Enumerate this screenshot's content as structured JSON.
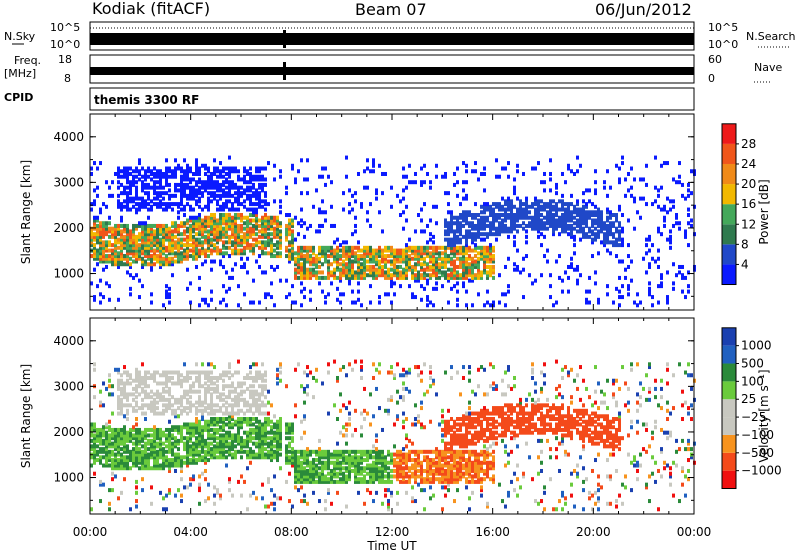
{
  "header": {
    "station": "Kodiak (fitACF)",
    "beam": "Beam 07",
    "date": "06/Jun/2012"
  },
  "params": {
    "nsky_label": "N.Sky",
    "nsky_ticks": [
      "10^5",
      "10^0"
    ],
    "nsearch_label": "N.Search",
    "nsearch_ticks": [
      "10^5",
      "10^0"
    ],
    "freq_label": "Freq.",
    "freq_unit": "[MHz]",
    "freq_ticks": [
      "18",
      "8"
    ],
    "nave_label": "Nave",
    "nave_ticks": [
      "60",
      "0"
    ],
    "cpid_label": "CPID",
    "cpid_value": "themis 3300 RF"
  },
  "colors": {
    "power": [
      "#0a1aff",
      "#2048c8",
      "#2f7a4e",
      "#44a85a",
      "#f2b800",
      "#f08a18",
      "#f0561a",
      "#ee1a1a"
    ],
    "velocity": [
      "#f01010",
      "#f44a1a",
      "#f7931e",
      "#c8c8c0",
      "#c8c8c0",
      "#6acb3c",
      "#2a8a3a",
      "#2060c0",
      "#1a40b0"
    ]
  },
  "chart_data": [
    {
      "type": "heatmap",
      "quantity": "Power",
      "ylabel": "Slant Range [km]",
      "yticks": [
        "1000",
        "2000",
        "3000",
        "4000"
      ],
      "ylim": [
        200,
        4500
      ],
      "xticks": [
        "00:00",
        "04:00",
        "08:00",
        "12:00",
        "16:00",
        "20:00",
        "00:00"
      ],
      "xlim_hours": [
        0,
        24
      ],
      "colorbar": {
        "label": "Power [dB]",
        "ticks": [
          "4",
          "8",
          "12",
          "16",
          "20",
          "24",
          "28"
        ],
        "range": [
          0,
          32
        ]
      }
    },
    {
      "type": "heatmap",
      "quantity": "Velocity",
      "ylabel": "Slant Range [km]",
      "yticks": [
        "1000",
        "2000",
        "3000",
        "4000"
      ],
      "ylim": [
        200,
        4500
      ],
      "xticks": [
        "00:00",
        "04:00",
        "08:00",
        "12:00",
        "16:00",
        "20:00",
        "00:00"
      ],
      "xlim_hours": [
        0,
        24
      ],
      "xlabel": "Time UT",
      "colorbar": {
        "label": "Velocity [m s⁻¹]",
        "ticks": [
          "1000",
          "500",
          "100",
          "25",
          "−25",
          "−100",
          "−500",
          "−1000"
        ]
      }
    }
  ]
}
